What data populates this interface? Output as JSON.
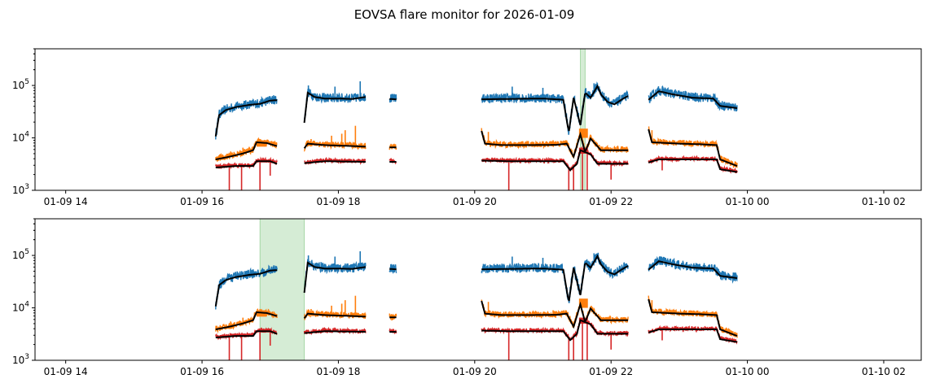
{
  "chart_data": {
    "type": "line",
    "title": "EOVSA flare monitor for 2026-01-09",
    "ylog": true,
    "colors": {
      "blue": "#1f77b4",
      "orange": "#ff7f0e",
      "red": "#d62728",
      "smooth": "#000000",
      "flare_span": "#2ca02c"
    },
    "x_ticks": [
      {
        "hour": 14,
        "label": "01-09 14"
      },
      {
        "hour": 16,
        "label": "01-09 16"
      },
      {
        "hour": 18,
        "label": "01-09 18"
      },
      {
        "hour": 20,
        "label": "01-09 20"
      },
      {
        "hour": 22,
        "label": "01-09 22"
      },
      {
        "hour": 24,
        "label": "01-10 00"
      },
      {
        "hour": 26,
        "label": "01-10 02"
      }
    ],
    "y_ticks": [
      {
        "value": 1000,
        "base": "10",
        "exp": "3"
      },
      {
        "value": 10000,
        "base": "10",
        "exp": "4"
      },
      {
        "value": 100000,
        "base": "10",
        "exp": "5"
      }
    ],
    "xlim": [
      13.55,
      26.55
    ],
    "ylim": [
      1000,
      500000
    ],
    "observation_segments": [
      [
        16.2,
        17.1
      ],
      [
        17.5,
        18.4
      ],
      [
        18.75,
        18.85
      ],
      [
        20.1,
        22.25
      ],
      [
        22.55,
        23.85
      ]
    ],
    "series": [
      {
        "name": "high",
        "color": "blue",
        "noise": 0.18,
        "points": [
          [
            16.2,
            11000
          ],
          [
            16.25,
            28000
          ],
          [
            16.35,
            35000
          ],
          [
            16.5,
            40000
          ],
          [
            16.7,
            44000
          ],
          [
            16.85,
            46000
          ],
          [
            17.0,
            53000
          ],
          [
            17.1,
            54000
          ],
          [
            17.5,
            20000
          ],
          [
            17.55,
            75000
          ],
          [
            17.65,
            62000
          ],
          [
            17.8,
            58000
          ],
          [
            18.0,
            58000
          ],
          [
            18.2,
            57000
          ],
          [
            18.4,
            62000
          ],
          [
            18.75,
            57000
          ],
          [
            18.85,
            56000
          ],
          [
            20.1,
            56000
          ],
          [
            20.5,
            57000
          ],
          [
            21.0,
            58000
          ],
          [
            21.3,
            55000
          ],
          [
            21.38,
            13000
          ],
          [
            21.45,
            60000
          ],
          [
            21.55,
            18000
          ],
          [
            21.62,
            75000
          ],
          [
            21.7,
            60000
          ],
          [
            21.8,
            100000
          ],
          [
            21.85,
            70000
          ],
          [
            21.95,
            50000
          ],
          [
            22.05,
            45000
          ],
          [
            22.15,
            55000
          ],
          [
            22.25,
            65000
          ],
          [
            22.55,
            55000
          ],
          [
            22.7,
            80000
          ],
          [
            22.9,
            70000
          ],
          [
            23.2,
            60000
          ],
          [
            23.5,
            58000
          ],
          [
            23.6,
            42000
          ],
          [
            23.85,
            38000
          ]
        ]
      },
      {
        "name": "mid",
        "color": "orange",
        "noise": 0.12,
        "points": [
          [
            16.2,
            4000
          ],
          [
            16.4,
            4500
          ],
          [
            16.6,
            5200
          ],
          [
            16.75,
            6000
          ],
          [
            16.8,
            8500
          ],
          [
            16.95,
            8200
          ],
          [
            17.1,
            7200
          ],
          [
            17.5,
            6500
          ],
          [
            17.55,
            8000
          ],
          [
            17.8,
            7500
          ],
          [
            18.2,
            7200
          ],
          [
            18.4,
            7000
          ],
          [
            18.75,
            6800
          ],
          [
            18.85,
            6800
          ],
          [
            20.1,
            14000
          ],
          [
            20.15,
            8000
          ],
          [
            20.4,
            7500
          ],
          [
            20.8,
            7500
          ],
          [
            21.2,
            7600
          ],
          [
            21.35,
            8000
          ],
          [
            21.45,
            4500
          ],
          [
            21.55,
            12000
          ],
          [
            21.62,
            5500
          ],
          [
            21.7,
            10000
          ],
          [
            21.85,
            6000
          ],
          [
            22.0,
            6000
          ],
          [
            22.25,
            6000
          ],
          [
            22.55,
            15000
          ],
          [
            22.6,
            8500
          ],
          [
            23.0,
            8000
          ],
          [
            23.3,
            7800
          ],
          [
            23.55,
            7500
          ],
          [
            23.6,
            4000
          ],
          [
            23.85,
            3000
          ]
        ]
      },
      {
        "name": "low",
        "color": "red",
        "noise": 0.08,
        "points": [
          [
            16.2,
            2800
          ],
          [
            16.5,
            3000
          ],
          [
            16.75,
            3000
          ],
          [
            16.8,
            3700
          ],
          [
            17.0,
            3700
          ],
          [
            17.1,
            3300
          ],
          [
            17.5,
            3400
          ],
          [
            17.8,
            3700
          ],
          [
            18.4,
            3600
          ],
          [
            18.75,
            3600
          ],
          [
            18.85,
            3600
          ],
          [
            20.1,
            3800
          ],
          [
            20.5,
            3700
          ],
          [
            21.3,
            3700
          ],
          [
            21.4,
            2500
          ],
          [
            21.5,
            3300
          ],
          [
            21.55,
            6000
          ],
          [
            21.7,
            5000
          ],
          [
            21.8,
            3300
          ],
          [
            22.25,
            3300
          ],
          [
            22.55,
            3500
          ],
          [
            22.7,
            4000
          ],
          [
            23.55,
            4000
          ],
          [
            23.6,
            2600
          ],
          [
            23.85,
            2300
          ]
        ]
      }
    ],
    "spikes": [
      {
        "x": 16.18,
        "color": "blue",
        "to": 10500
      },
      {
        "x": 16.42,
        "color": "orange",
        "to": 5500
      },
      {
        "x": 16.6,
        "color": "orange",
        "to": 6500
      },
      {
        "x": 16.85,
        "color": "orange",
        "to": 9500
      },
      {
        "x": 17.03,
        "color": "orange",
        "to": 8000
      },
      {
        "x": 17.6,
        "color": "orange",
        "to": 9500
      },
      {
        "x": 17.9,
        "color": "orange",
        "to": 11000
      },
      {
        "x": 18.05,
        "color": "orange",
        "to": 12000
      },
      {
        "x": 18.1,
        "color": "orange",
        "to": 14000
      },
      {
        "x": 18.25,
        "color": "orange",
        "to": 17000
      },
      {
        "x": 17.56,
        "color": "blue",
        "to": 100000
      },
      {
        "x": 17.95,
        "color": "blue",
        "to": 95000
      },
      {
        "x": 18.32,
        "color": "blue",
        "to": 120000
      },
      {
        "x": 20.55,
        "color": "blue",
        "to": 95000
      },
      {
        "x": 21.0,
        "color": "blue",
        "to": 90000
      },
      {
        "x": 21.75,
        "color": "blue",
        "to": 110000
      },
      {
        "x": 21.15,
        "color": "orange",
        "to": 9000
      },
      {
        "x": 20.2,
        "color": "orange",
        "to": 13000
      },
      {
        "x": 22.6,
        "color": "orange",
        "to": 14000
      },
      {
        "x": 16.4,
        "color": "red",
        "to": 400
      },
      {
        "x": 16.58,
        "color": "red",
        "to": 400
      },
      {
        "x": 16.85,
        "color": "red",
        "to": 400
      },
      {
        "x": 17.0,
        "color": "red",
        "to": 1900
      },
      {
        "x": 20.5,
        "color": "red",
        "to": 400
      },
      {
        "x": 21.38,
        "color": "red",
        "to": 400
      },
      {
        "x": 21.45,
        "color": "red",
        "to": 400
      },
      {
        "x": 21.58,
        "color": "red",
        "to": 400
      },
      {
        "x": 21.65,
        "color": "red",
        "to": 400
      },
      {
        "x": 22.0,
        "color": "red",
        "to": 1600
      },
      {
        "x": 22.75,
        "color": "red",
        "to": 2400
      }
    ],
    "blocks": [
      {
        "x0": 16.8,
        "x1": 16.95,
        "color": "orange",
        "lo": 6800,
        "hi": 9000
      },
      {
        "x0": 16.85,
        "x1": 17.0,
        "color": "red",
        "lo": 3400,
        "hi": 3800
      },
      {
        "x0": 21.53,
        "x1": 21.66,
        "color": "red",
        "lo": 5000,
        "hi": 6500
      },
      {
        "x0": 21.53,
        "x1": 21.66,
        "color": "orange",
        "lo": 10000,
        "hi": 15000
      }
    ],
    "panels": [
      {
        "name": "top",
        "flare_span": [
          21.55,
          21.62
        ]
      },
      {
        "name": "bottom",
        "flare_span": [
          16.85,
          17.5
        ]
      }
    ]
  }
}
